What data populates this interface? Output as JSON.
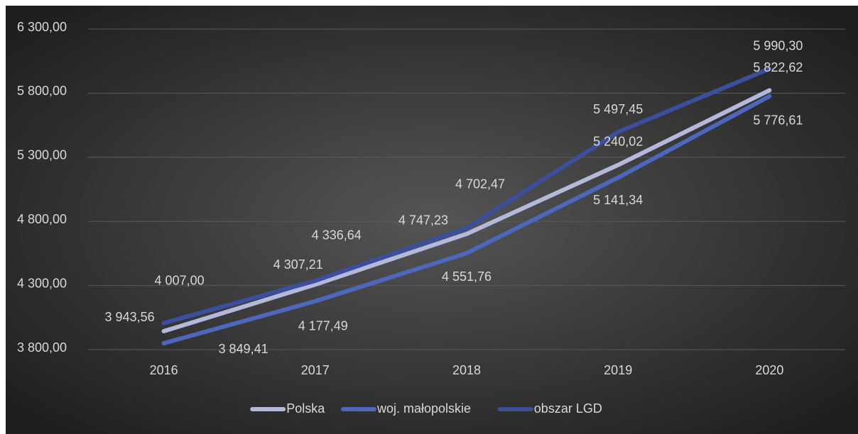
{
  "chart_data": {
    "type": "line",
    "categories": [
      "2016",
      "2017",
      "2018",
      "2019",
      "2020"
    ],
    "series": [
      {
        "name": "Polska",
        "color": "#b4b9dc",
        "values": [
          3943.56,
          4307.21,
          4702.47,
          5240.02,
          5822.62
        ],
        "value_labels": [
          "3 943,56",
          "4 307,21",
          "4 702,47",
          "5 240,02",
          "5 822,62"
        ]
      },
      {
        "name": "woj. małopolskie",
        "color": "#4d67bd",
        "values": [
          3849.41,
          4177.49,
          4551.76,
          5141.34,
          5776.61
        ],
        "value_labels": [
          "3 849,41",
          "4 177,49",
          "4 551,76",
          "5 141,34",
          "5 776,61"
        ]
      },
      {
        "name": "obszar LGD",
        "color": "#3b4f9c",
        "values": [
          4007.0,
          4336.64,
          4747.23,
          5497.45,
          5990.3
        ],
        "value_labels": [
          "4 007,00",
          "4 336,64",
          "4 747,23",
          "5 497,45",
          "5 990,30"
        ]
      }
    ],
    "ylim": [
      3800,
      6300
    ],
    "yticks": [
      {
        "value": 3800,
        "label": "3 800,00"
      },
      {
        "value": 4300,
        "label": "4 300,00"
      },
      {
        "value": 4800,
        "label": "4 800,00"
      },
      {
        "value": 5300,
        "label": "5 300,00"
      },
      {
        "value": 5800,
        "label": "5 800,00"
      },
      {
        "value": 6300,
        "label": "6 300,00"
      }
    ],
    "grid": true,
    "legend": "bottom"
  }
}
